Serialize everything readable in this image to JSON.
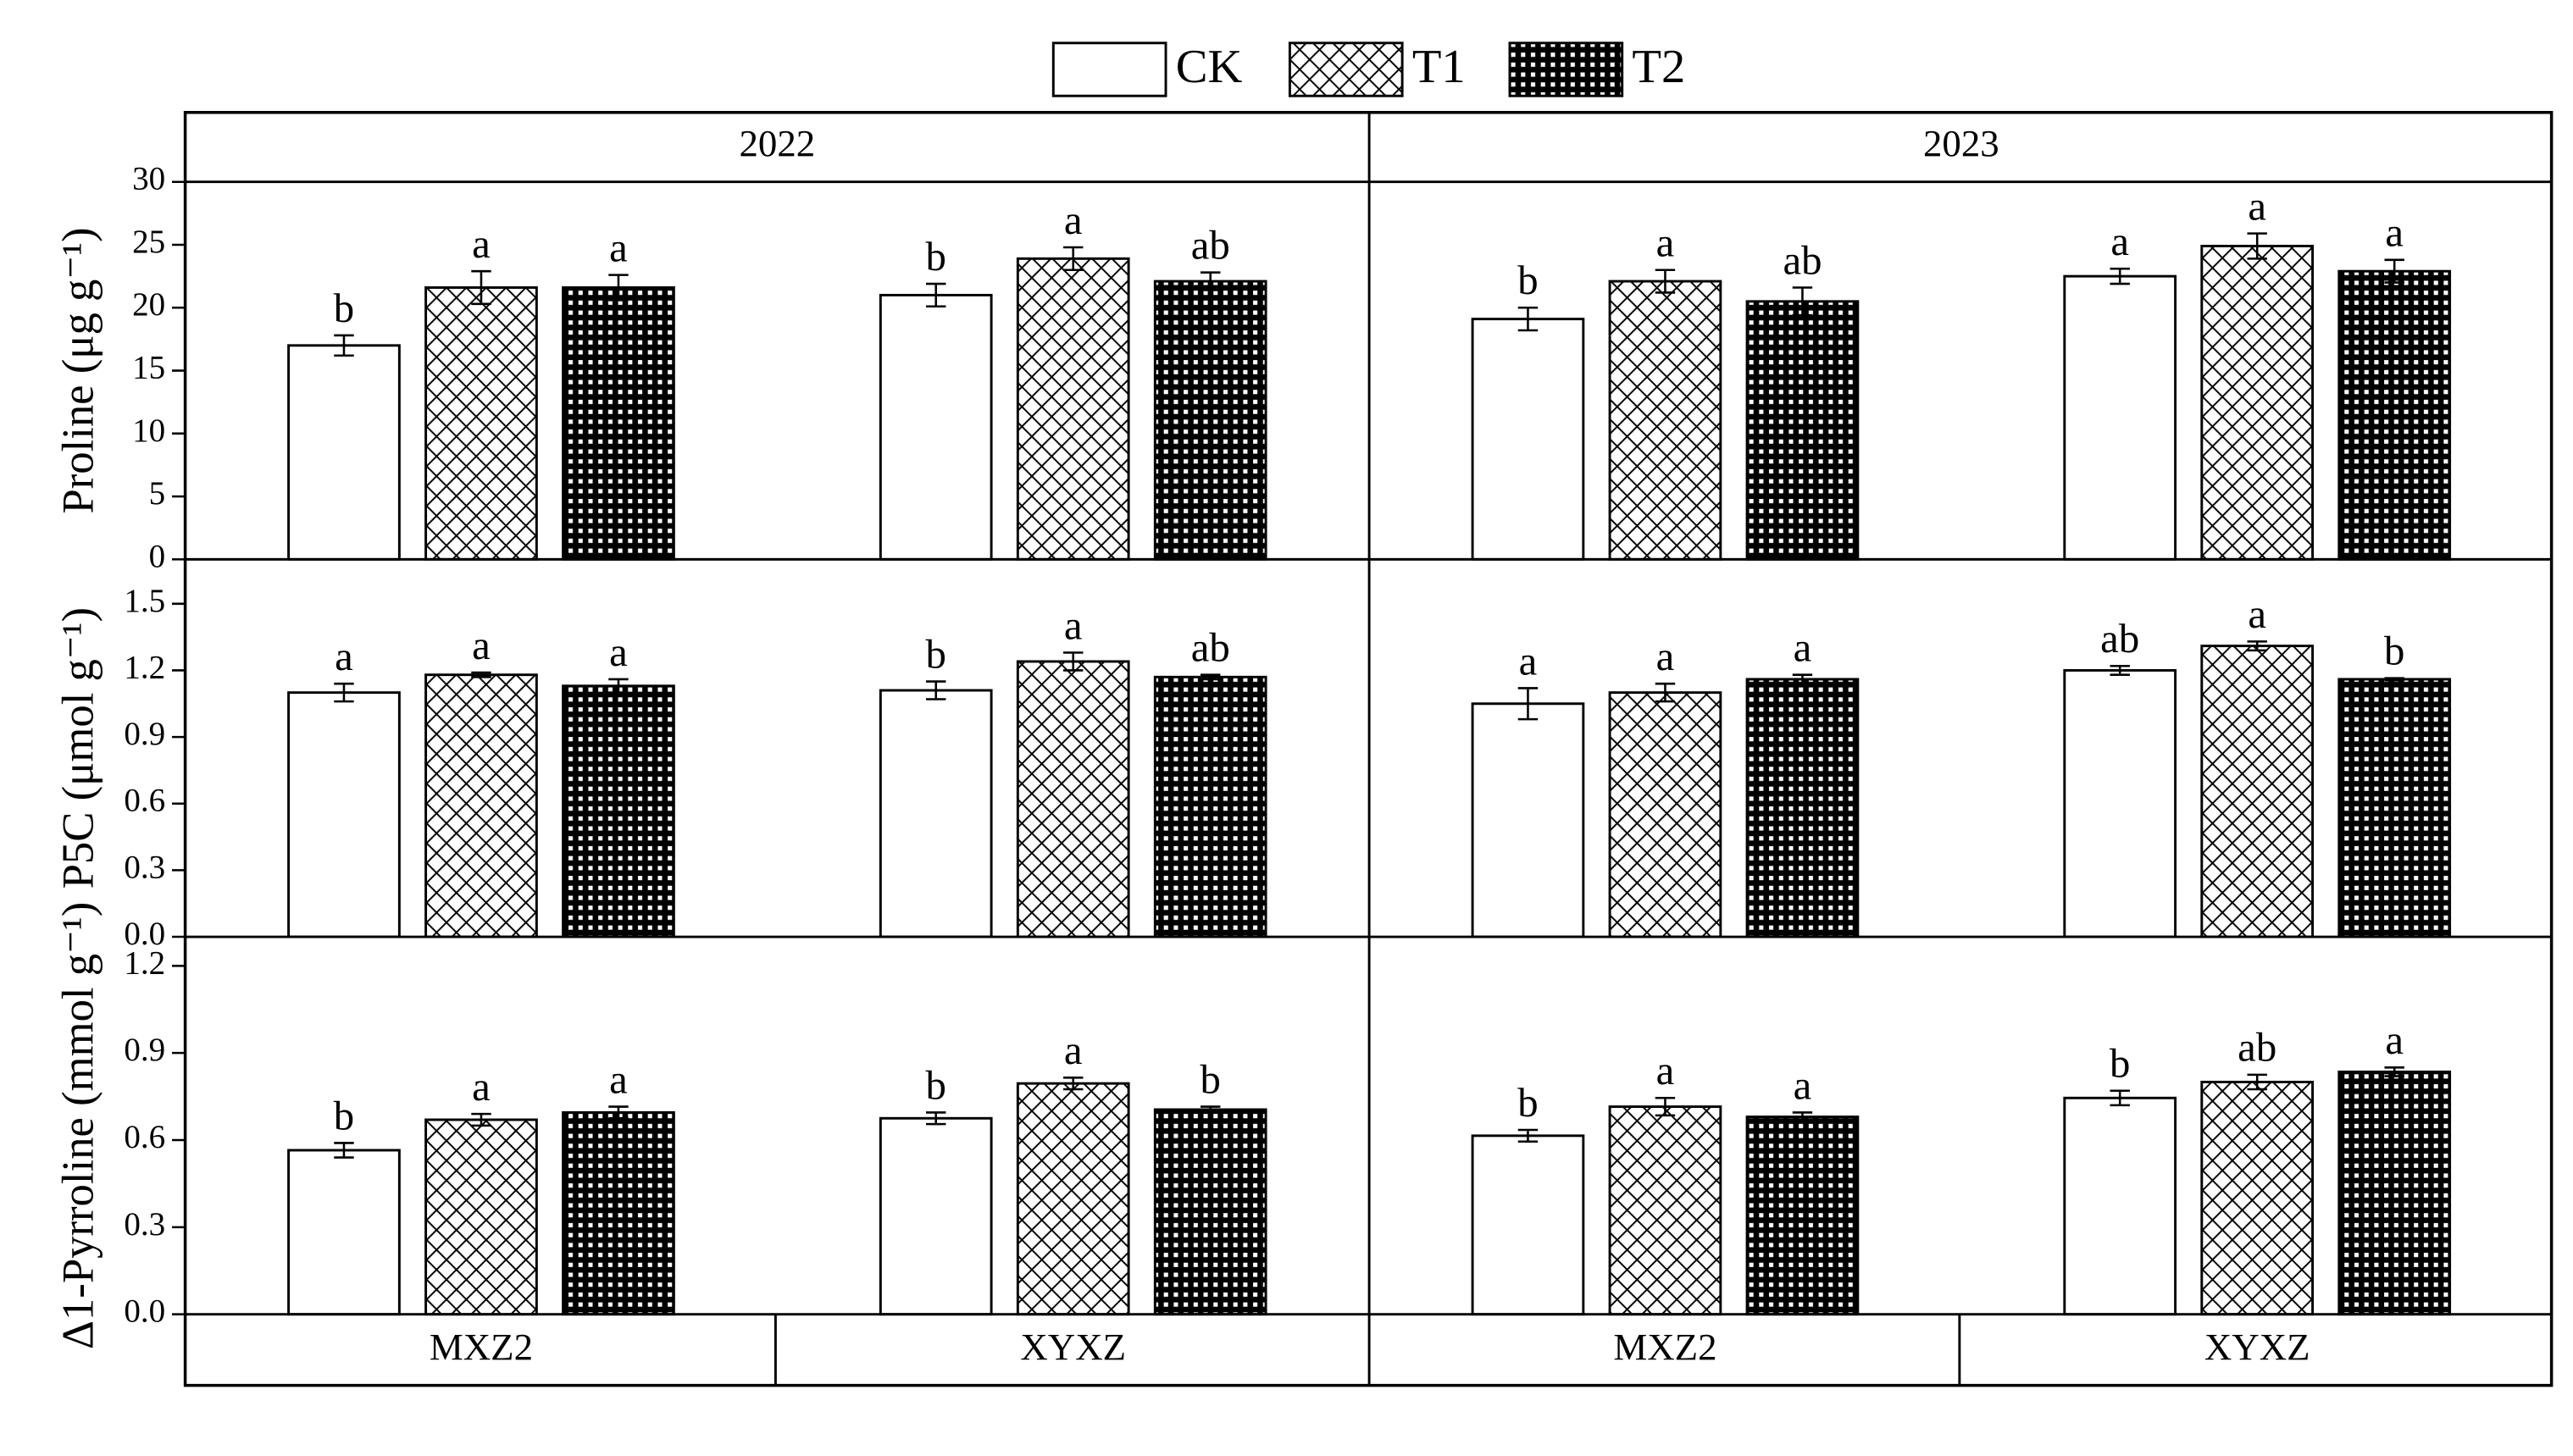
{
  "chart_data": {
    "type": "bar",
    "legend": [
      {
        "name": "CK",
        "pattern": "none"
      },
      {
        "name": "T1",
        "pattern": "crosshatch"
      },
      {
        "name": "T2",
        "pattern": "grid"
      }
    ],
    "columns": [
      "2022",
      "2023"
    ],
    "categories": [
      "MXZ2",
      "XYXZ"
    ],
    "rows": [
      {
        "ylabel": "Proline (μg g⁻¹)",
        "ylim": [
          0,
          30
        ],
        "yticks": [
          0,
          5,
          10,
          15,
          20,
          25,
          30
        ],
        "panels": [
          {
            "series": [
              {
                "values": [
                  17.0,
                  21.0
                ],
                "errors": [
                  0.8,
                  0.9
                ],
                "letters": [
                  "b",
                  "b"
                ]
              },
              {
                "values": [
                  21.6,
                  23.9
                ],
                "errors": [
                  1.3,
                  0.9
                ],
                "letters": [
                  "a",
                  "a"
                ]
              },
              {
                "values": [
                  21.6,
                  22.1
                ],
                "errors": [
                  1.0,
                  0.7
                ],
                "letters": [
                  "a",
                  "ab"
                ]
              }
            ]
          },
          {
            "series": [
              {
                "values": [
                  19.1,
                  22.5
                ],
                "errors": [
                  0.9,
                  0.6
                ],
                "letters": [
                  "b",
                  "a"
                ]
              },
              {
                "values": [
                  22.1,
                  24.9
                ],
                "errors": [
                  0.9,
                  1.0
                ],
                "letters": [
                  "a",
                  "a"
                ]
              },
              {
                "values": [
                  20.5,
                  22.9
                ],
                "errors": [
                  1.1,
                  0.9
                ],
                "letters": [
                  "ab",
                  "a"
                ]
              }
            ]
          }
        ]
      },
      {
        "ylabel": "P5C (μmol g⁻¹)",
        "ylim": [
          0,
          1.7
        ],
        "yticks": [
          {
            "value": 0,
            "label": "0.0"
          },
          0.3,
          0.6,
          0.9,
          1.2,
          1.5
        ],
        "panels": [
          {
            "series": [
              {
                "values": [
                  1.1,
                  1.11
                ],
                "errors": [
                  0.04,
                  0.04
                ],
                "letters": [
                  "a",
                  "b"
                ]
              },
              {
                "values": [
                  1.18,
                  1.24
                ],
                "errors": [
                  0.01,
                  0.04
                ],
                "letters": [
                  "a",
                  "a"
                ]
              },
              {
                "values": [
                  1.13,
                  1.17
                ],
                "errors": [
                  0.03,
                  0.01
                ],
                "letters": [
                  "a",
                  "ab"
                ]
              }
            ]
          },
          {
            "series": [
              {
                "values": [
                  1.05,
                  1.2
                ],
                "errors": [
                  0.07,
                  0.02
                ],
                "letters": [
                  "a",
                  "ab"
                ]
              },
              {
                "values": [
                  1.1,
                  1.31
                ],
                "errors": [
                  0.04,
                  0.02
                ],
                "letters": [
                  "a",
                  "a"
                ]
              },
              {
                "values": [
                  1.16,
                  1.16
                ],
                "errors": [
                  0.02,
                  0.005
                ],
                "letters": [
                  "a",
                  "b"
                ]
              }
            ]
          }
        ]
      },
      {
        "ylabel": "Δ1-Pyrroline (mmol g⁻¹)",
        "ylim": [
          0,
          1.3
        ],
        "yticks": [
          {
            "value": 0,
            "label": "0.0"
          },
          0.3,
          0.6,
          0.9,
          1.2
        ],
        "panels": [
          {
            "series": [
              {
                "values": [
                  0.565,
                  0.675
                ],
                "errors": [
                  0.025,
                  0.02
                ],
                "letters": [
                  "b",
                  "b"
                ]
              },
              {
                "values": [
                  0.67,
                  0.795
                ],
                "errors": [
                  0.02,
                  0.02
                ],
                "letters": [
                  "a",
                  "a"
                ]
              },
              {
                "values": [
                  0.695,
                  0.705
                ],
                "errors": [
                  0.02,
                  0.01
                ],
                "letters": [
                  "a",
                  "b"
                ]
              }
            ]
          },
          {
            "series": [
              {
                "values": [
                  0.615,
                  0.745
                ],
                "errors": [
                  0.02,
                  0.025
                ],
                "letters": [
                  "b",
                  "b"
                ]
              },
              {
                "values": [
                  0.715,
                  0.8
                ],
                "errors": [
                  0.03,
                  0.025
                ],
                "letters": [
                  "a",
                  "ab"
                ]
              },
              {
                "values": [
                  0.68,
                  0.835
                ],
                "errors": [
                  0.015,
                  0.015
                ],
                "letters": [
                  "a",
                  "a"
                ]
              }
            ]
          }
        ]
      }
    ]
  }
}
